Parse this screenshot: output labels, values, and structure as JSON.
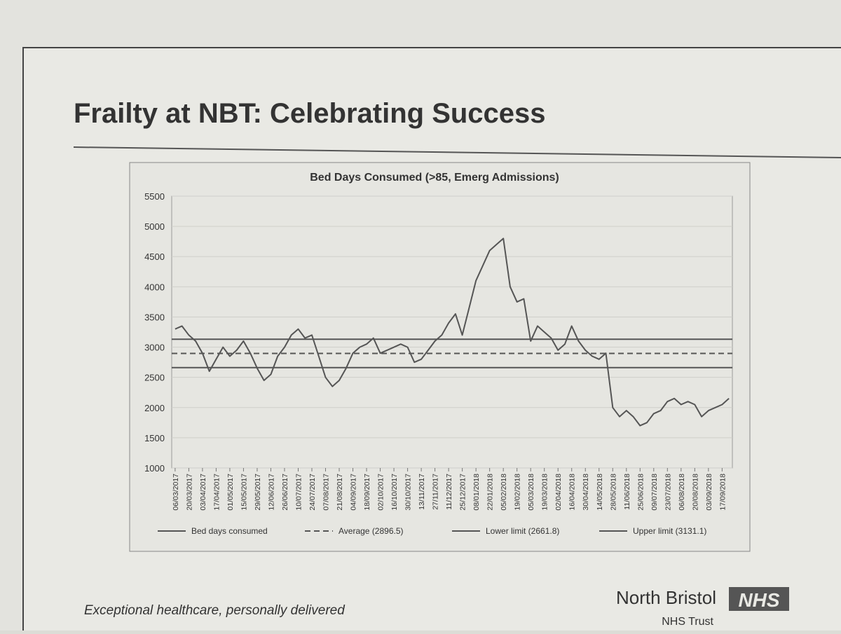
{
  "page": {
    "title": "Frailty at NBT: Celebrating Success",
    "footer": "Exceptional healthcare, personally delivered",
    "org_name": "North Bristol",
    "org_logo": "NHS",
    "org_sub": "NHS Trust"
  },
  "chart_data": {
    "type": "line",
    "title": "Bed Days Consumed (>85, Emerg Admissions)",
    "categories": [
      "06/03/2017",
      null,
      "20/03/2017",
      null,
      "03/04/2017",
      null,
      "17/04/2017",
      null,
      "01/05/2017",
      null,
      "15/05/2017",
      null,
      "29/05/2017",
      null,
      "12/06/2017",
      null,
      "26/06/2017",
      null,
      "10/07/2017",
      null,
      "24/07/2017",
      null,
      "07/08/2017",
      null,
      "21/08/2017",
      null,
      "04/09/2017",
      null,
      "18/09/2017",
      null,
      "02/10/2017",
      null,
      "16/10/2017",
      null,
      "30/10/2017",
      null,
      "13/11/2017",
      null,
      "27/11/2017",
      null,
      "11/12/2017",
      null,
      "25/12/2017",
      null,
      "08/01/2018",
      null,
      "22/01/2018",
      null,
      "05/02/2018",
      null,
      "19/02/2018",
      null,
      "05/03/2018",
      null,
      "19/03/2018",
      null,
      "02/04/2018",
      null,
      "16/04/2018",
      null,
      "30/04/2018",
      null,
      "14/05/2018",
      null,
      "28/05/2018",
      null,
      "11/06/2018",
      null,
      "25/06/2018",
      null,
      "09/07/2018",
      null,
      "23/07/2018",
      null,
      "06/08/2018",
      null,
      "20/08/2018",
      null,
      "03/09/2018",
      null,
      "17/09/2018",
      null
    ],
    "series": [
      {
        "name": "Bed days consumed",
        "color": "#555555",
        "values": [
          3300,
          3350,
          3200,
          3100,
          2900,
          2600,
          2800,
          3000,
          2850,
          2950,
          3100,
          2900,
          2650,
          2450,
          2550,
          2850,
          3000,
          3200,
          3300,
          3150,
          3200,
          2850,
          2500,
          2350,
          2450,
          2650,
          2900,
          3000,
          3050,
          3150,
          2900,
          2950,
          3000,
          3050,
          3000,
          2750,
          2800,
          2950,
          3100,
          3200,
          3400,
          3550,
          3200,
          3650,
          4100,
          4350,
          4600,
          4700,
          4800,
          4000,
          3750,
          3800,
          3100,
          3350,
          3250,
          3150,
          2950,
          3050,
          3350,
          3100,
          2950,
          2850,
          2800,
          2900,
          2000,
          1850,
          1950,
          1850,
          1700,
          1750,
          1900,
          1950,
          2100,
          2150,
          2050,
          2100,
          2050,
          1850,
          1950,
          2000,
          2050,
          2150
        ]
      }
    ],
    "reference_lines": [
      {
        "name": "Average (2896.5)",
        "value": 2896.5,
        "dashed": true,
        "color": "#555555"
      },
      {
        "name": "Lower limit (2661.8)",
        "value": 2661.8,
        "dashed": false,
        "color": "#555555"
      },
      {
        "name": "Upper limit (3131.1)",
        "value": 3131.1,
        "dashed": false,
        "color": "#555555"
      }
    ],
    "ylim": [
      1000,
      5500
    ],
    "yticks": [
      1000,
      1500,
      2000,
      2500,
      3000,
      3500,
      4000,
      4500,
      5000,
      5500
    ],
    "grid": true
  }
}
